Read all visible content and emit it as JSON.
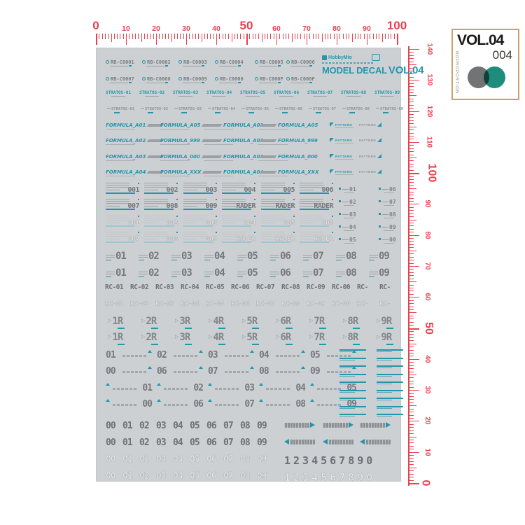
{
  "info_box": {
    "volume": "VOL.04",
    "number": "004",
    "side_text": "NOPROPORTION",
    "border_color": "#c9a265",
    "circle_left_color": "#717375",
    "circle_right_color": "#1e8d7b"
  },
  "rulers": {
    "color": "#e8404e",
    "top": {
      "labels": [
        "0",
        "10",
        "20",
        "30",
        "40",
        "50",
        "60",
        "70",
        "80",
        "90",
        "100"
      ],
      "big_labels": [
        "0",
        "50",
        "100"
      ]
    },
    "right": {
      "labels": [
        "140",
        "130",
        "120",
        "110",
        "100",
        "90",
        "80",
        "70",
        "60",
        "50",
        "40",
        "30",
        "20",
        "10",
        "0"
      ],
      "big_labels": [
        "100",
        "50",
        "0"
      ]
    }
  },
  "sheet": {
    "bg": "#cdd0d2",
    "accent": "#2396ac",
    "brand": {
      "logo": "HobbyMio",
      "title": "MODEL DECAL",
      "volume": "VOL.04"
    },
    "rb_row1": [
      "RB-C0001",
      "RB-C0002",
      "RB-C0003",
      "RB-C0004",
      "RB-C0005",
      "RB-C0006"
    ],
    "rb_row2": [
      "RB-C0007",
      "RB-C0008",
      "RB-C0009",
      "RB-C0000",
      "RB-C000P",
      "RB-C000P"
    ],
    "stratos_teal": [
      "STRATOS-01",
      "STRATOS-02",
      "STRATOS-03",
      "STRATOS-04",
      "STRATOS-05",
      "STRATOS-06",
      "STRATOS-07",
      "STRATOS-08",
      "STRATOS-09"
    ],
    "stratos_gray": [
      "STRATOS-01",
      "STRATOS-02",
      "STRATOS-03",
      "STRATOS-04",
      "STRATOS-05",
      "STRATOS-06",
      "STRATOS-07",
      "STRATOS-08",
      "STRATOS-09"
    ],
    "pattern_label": "PATTERN",
    "formula_rows": [
      [
        "FORMULA_A01",
        "FORMULA_A05",
        "FORMULA_A01",
        "FORMULA_A05"
      ],
      [
        "FORMULA_A02",
        "FORMULA_999",
        "FORMULA_A02",
        "FORMULA_999"
      ],
      [
        "FORMULA_A03",
        "FORMULA_000",
        "FORMULA_A03",
        "FORMULA_000"
      ],
      [
        "FORMULA_A04",
        "FORMULA_XXX",
        "FORMULA_A04",
        "FORMULA_XXX"
      ]
    ],
    "number_blocks_solid": [
      [
        "001",
        "002",
        "003",
        "004",
        "005",
        "006"
      ],
      [
        "007",
        "008",
        "009",
        "RADER",
        "RADER",
        "RADER"
      ]
    ],
    "number_blocks_outline": [
      [
        "001",
        "002",
        "003",
        "004",
        "005",
        "006"
      ],
      [
        "007",
        "008",
        "009",
        "RADER",
        "RADER",
        "RADER"
      ]
    ],
    "mini_ids_col1": [
      "01",
      "02",
      "03",
      "04",
      "05"
    ],
    "mini_ids_col2": [
      "06",
      "07",
      "08",
      "09",
      "00"
    ],
    "tag_numbers_rows": [
      [
        "01",
        "02",
        "03",
        "04",
        "05",
        "06",
        "07",
        "08",
        "09"
      ],
      [
        "01",
        "02",
        "03",
        "04",
        "05",
        "06",
        "07",
        "08",
        "09"
      ]
    ],
    "rc_solid": [
      "RC-01",
      "RC-02",
      "RC-03",
      "RC-04",
      "RC-05",
      "RC-06",
      "RC-07",
      "RC-08",
      "RC-09",
      "RC-00",
      "RC-",
      "RC-"
    ],
    "rc_outline": [
      "RC-01",
      "RC-02",
      "RC-03",
      "RC-04",
      "RC-05",
      "RC-06",
      "RC-07",
      "RC-08",
      "RC-09",
      "RC-00",
      "RC-",
      "RC-"
    ],
    "r_badges_rows": [
      [
        "1R",
        "2R",
        "3R",
        "4R",
        "5R",
        "6R",
        "7R",
        "8R",
        "9R"
      ],
      [
        "1R",
        "2R",
        "3R",
        "4R",
        "5R",
        "6R",
        "7R",
        "8R",
        "9R"
      ]
    ],
    "trail_right_rows": [
      [
        "01",
        "02",
        "03",
        "04",
        "05"
      ],
      [
        "00",
        "06",
        "07",
        "08",
        "09"
      ]
    ],
    "trail_left_rows": [
      [
        "01",
        "02",
        "03",
        "04",
        "05"
      ],
      [
        "00",
        "06",
        "07",
        "08",
        "09"
      ]
    ],
    "bottom_digit_rows_solid": [
      [
        "00",
        "01",
        "02",
        "03",
        "04",
        "05",
        "06",
        "07",
        "08",
        "09"
      ],
      [
        "00",
        "01",
        "02",
        "03",
        "04",
        "05",
        "06",
        "07",
        "08",
        "09"
      ]
    ],
    "bottom_digit_rows_outline": [
      [
        "00",
        "01",
        "02",
        "03",
        "04",
        "05",
        "06",
        "07",
        "08",
        "09"
      ],
      [
        "00",
        "01",
        "02",
        "03",
        "04",
        "05",
        "06",
        "07",
        "08",
        "09"
      ]
    ],
    "digit_strip_solid": "1234567890",
    "digit_strip_outline": "1234567890"
  }
}
